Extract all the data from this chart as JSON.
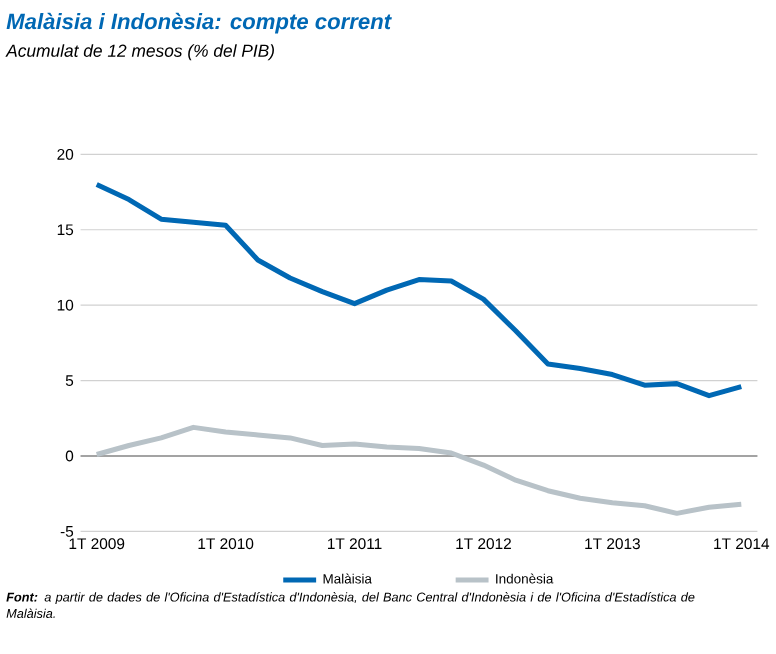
{
  "chart_data": {
    "type": "line",
    "title": "Malàisia i Indonèsia: compte corrent",
    "subtitle": "Acumulat de 12 mesos (% del PIB)",
    "categories": [
      "1T 2009",
      null,
      null,
      null,
      "1T 2010",
      null,
      null,
      null,
      "1T 2011",
      null,
      null,
      null,
      "1T 2012",
      null,
      null,
      null,
      "1T 2013",
      null,
      null,
      null,
      "1T 2014"
    ],
    "series": [
      {
        "name": "Malàisia",
        "color": "#0068b4",
        "values": [
          18.0,
          17.0,
          15.7,
          15.5,
          15.3,
          13.0,
          11.8,
          10.9,
          10.1,
          11.0,
          11.7,
          11.6,
          10.4,
          8.3,
          6.1,
          5.8,
          5.4,
          4.7,
          4.8,
          4.0,
          4.6
        ]
      },
      {
        "name": "Indonèsia",
        "color": "#b8c2c8",
        "values": [
          0.1,
          0.7,
          1.2,
          1.9,
          1.6,
          1.4,
          1.2,
          0.7,
          0.8,
          0.6,
          0.5,
          0.2,
          -0.6,
          -1.6,
          -2.3,
          -2.8,
          -3.1,
          -3.3,
          -3.8,
          -3.4,
          -3.2
        ]
      }
    ],
    "ylim": [
      -5,
      20
    ],
    "yticks": [
      -5,
      0,
      5,
      10,
      15,
      20
    ],
    "grid": "y",
    "legend": "bottom",
    "line_style": "solid",
    "marker": "none",
    "ref_lines": [
      {
        "axis": "y",
        "value": 0,
        "color": "#8c8c8c"
      }
    ],
    "annotations": [
      "**Font:** a partir de dades de l'Oficina d'Estadística d'Indonèsia, del Banc Central d'Indonèsia i de l'Oficina d'Estadística de Malàisia."
    ]
  }
}
